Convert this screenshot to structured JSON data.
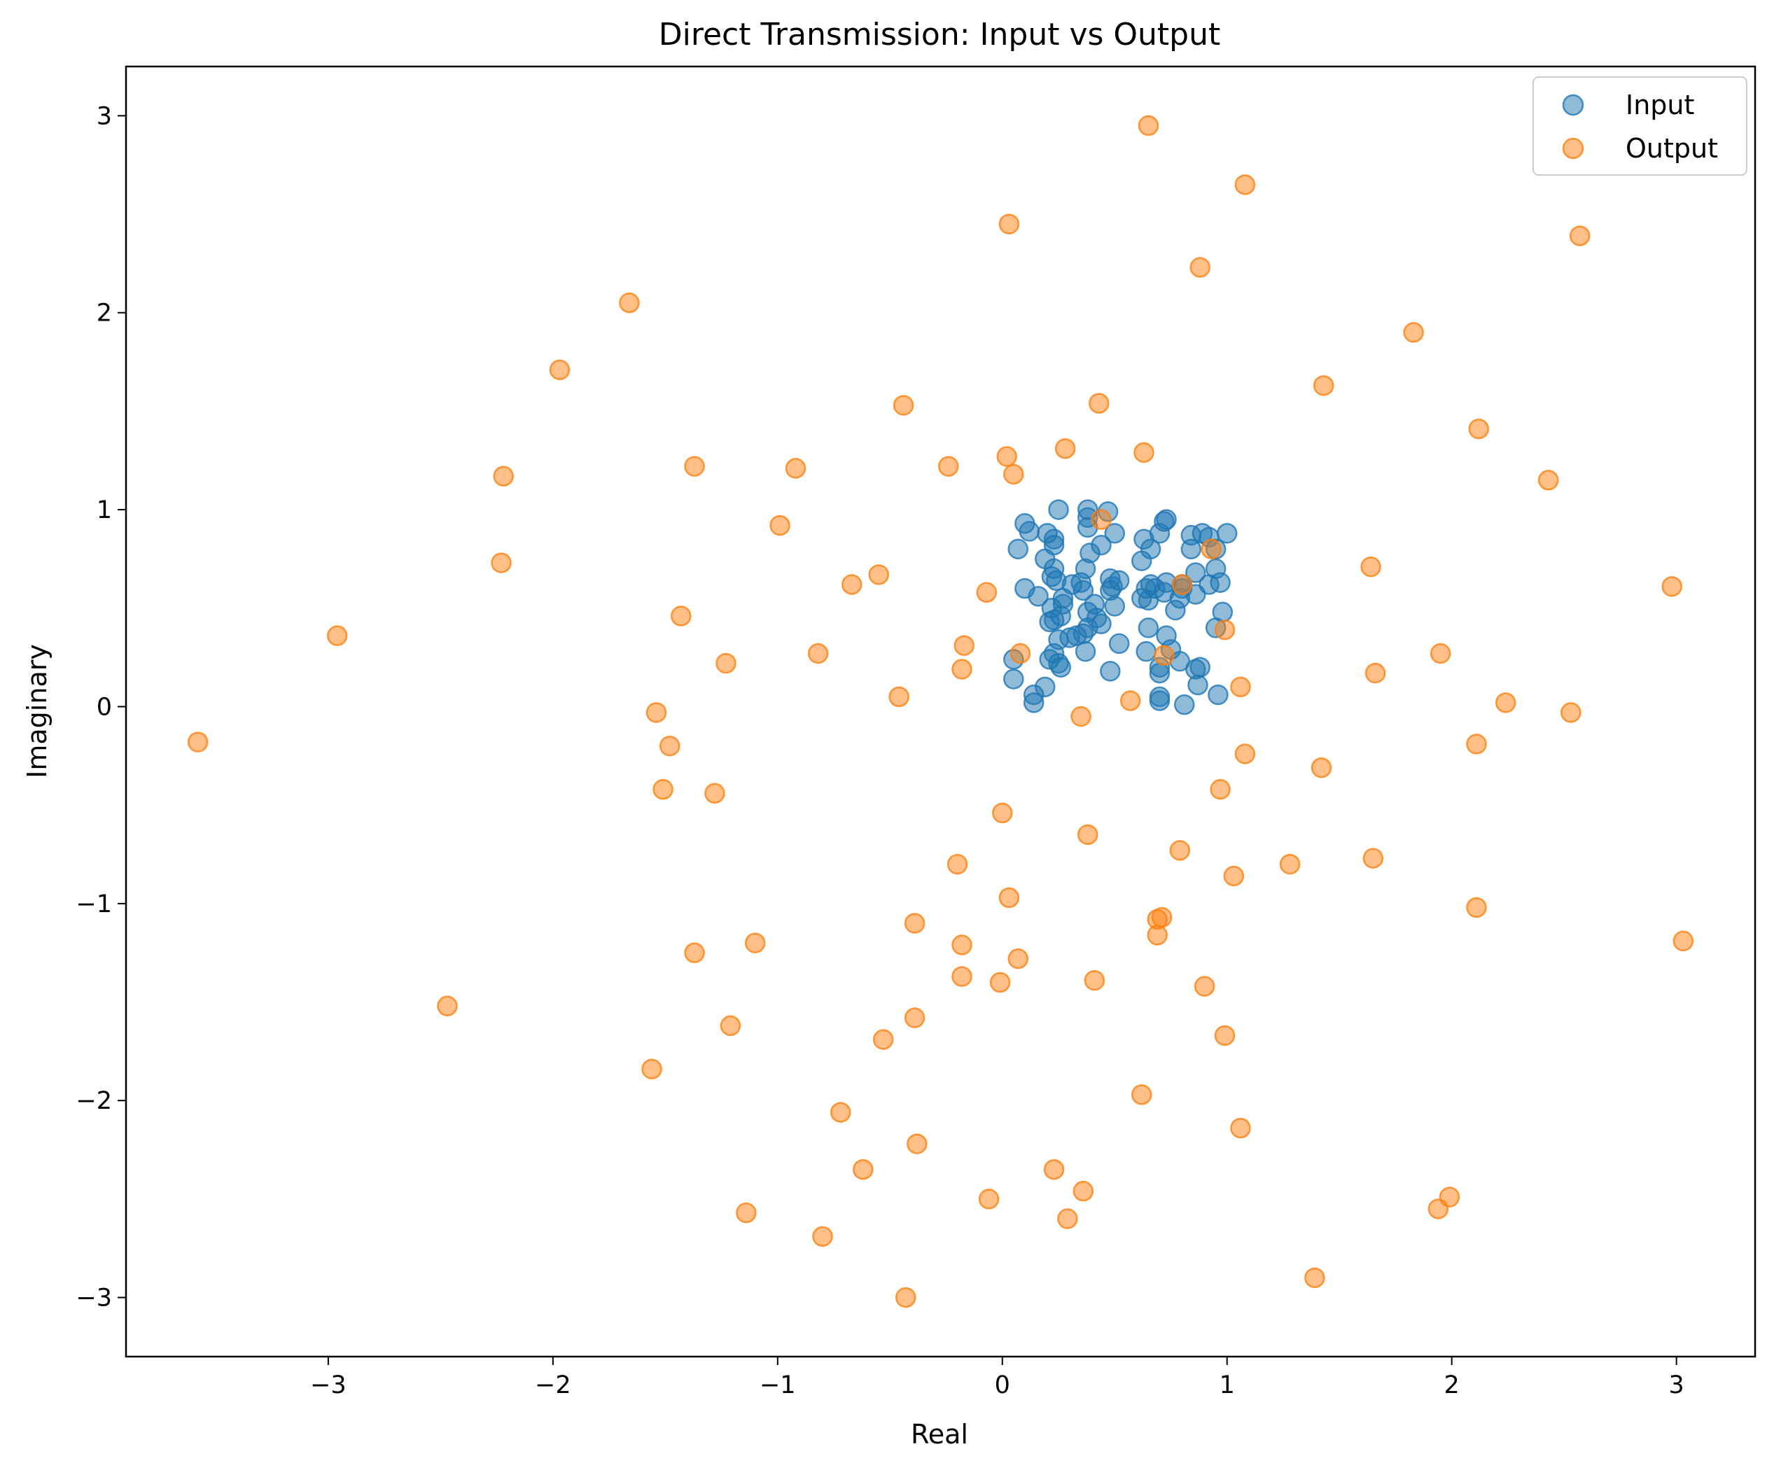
{
  "chart_data": {
    "type": "scatter",
    "title": "Direct Transmission: Input vs Output",
    "xlabel": "Real",
    "ylabel": "Imaginary",
    "xlim": [
      -3.9,
      3.35
    ],
    "ylim": [
      -3.3,
      3.25
    ],
    "x_ticks": [
      -3,
      -2,
      -1,
      0,
      1,
      2,
      3
    ],
    "y_ticks": [
      -3,
      -2,
      -1,
      0,
      1,
      2,
      3
    ],
    "x_tick_labels": [
      "−3",
      "−2",
      "−1",
      "0",
      "1",
      "2",
      "3"
    ],
    "y_tick_labels": [
      "−3",
      "−2",
      "−1",
      "0",
      "1",
      "2",
      "3"
    ],
    "grid": false,
    "legend_position": "top-right",
    "series": [
      {
        "name": "Input",
        "color": "#1f77b4",
        "points": [
          [
            0.1,
            0.93
          ],
          [
            0.12,
            0.89
          ],
          [
            0.25,
            1.0
          ],
          [
            0.38,
            1.0
          ],
          [
            0.47,
            0.99
          ],
          [
            0.38,
            0.96
          ],
          [
            0.38,
            0.91
          ],
          [
            0.2,
            0.88
          ],
          [
            0.23,
            0.85
          ],
          [
            0.23,
            0.82
          ],
          [
            0.07,
            0.8
          ],
          [
            0.44,
            0.82
          ],
          [
            0.39,
            0.78
          ],
          [
            0.5,
            0.88
          ],
          [
            0.19,
            0.75
          ],
          [
            0.23,
            0.7
          ],
          [
            0.37,
            0.7
          ],
          [
            0.22,
            0.66
          ],
          [
            0.31,
            0.62
          ],
          [
            0.1,
            0.6
          ],
          [
            0.16,
            0.56
          ],
          [
            0.24,
            0.64
          ],
          [
            0.35,
            0.63
          ],
          [
            0.36,
            0.59
          ],
          [
            0.27,
            0.55
          ],
          [
            0.27,
            0.52
          ],
          [
            0.22,
            0.5
          ],
          [
            0.26,
            0.46
          ],
          [
            0.23,
            0.44
          ],
          [
            0.21,
            0.43
          ],
          [
            0.38,
            0.48
          ],
          [
            0.41,
            0.52
          ],
          [
            0.42,
            0.45
          ],
          [
            0.44,
            0.42
          ],
          [
            0.38,
            0.4
          ],
          [
            0.36,
            0.37
          ],
          [
            0.33,
            0.36
          ],
          [
            0.3,
            0.35
          ],
          [
            0.25,
            0.34
          ],
          [
            0.37,
            0.28
          ],
          [
            0.23,
            0.27
          ],
          [
            0.21,
            0.24
          ],
          [
            0.25,
            0.22
          ],
          [
            0.26,
            0.2
          ],
          [
            0.05,
            0.24
          ],
          [
            0.05,
            0.14
          ],
          [
            0.19,
            0.1
          ],
          [
            0.14,
            0.06
          ],
          [
            0.14,
            0.02
          ],
          [
            0.48,
            0.65
          ],
          [
            0.49,
            0.61
          ],
          [
            0.52,
            0.64
          ],
          [
            0.48,
            0.59
          ],
          [
            0.5,
            0.51
          ],
          [
            0.52,
            0.32
          ],
          [
            0.48,
            0.18
          ],
          [
            0.63,
            0.85
          ],
          [
            0.62,
            0.74
          ],
          [
            0.66,
            0.8
          ],
          [
            0.7,
            0.88
          ],
          [
            0.72,
            0.94
          ],
          [
            0.73,
            0.95
          ],
          [
            0.66,
            0.62
          ],
          [
            0.68,
            0.6
          ],
          [
            0.62,
            0.55
          ],
          [
            0.65,
            0.54
          ],
          [
            0.64,
            0.6
          ],
          [
            0.72,
            0.58
          ],
          [
            0.73,
            0.63
          ],
          [
            0.8,
            0.6
          ],
          [
            0.84,
            0.87
          ],
          [
            0.89,
            0.88
          ],
          [
            0.92,
            0.86
          ],
          [
            0.84,
            0.8
          ],
          [
            0.95,
            0.8
          ],
          [
            0.95,
            0.7
          ],
          [
            0.86,
            0.68
          ],
          [
            0.92,
            0.62
          ],
          [
            0.97,
            0.63
          ],
          [
            0.86,
            0.57
          ],
          [
            0.79,
            0.55
          ],
          [
            0.77,
            0.49
          ],
          [
            0.98,
            0.48
          ],
          [
            0.95,
            0.4
          ],
          [
            0.65,
            0.4
          ],
          [
            0.73,
            0.36
          ],
          [
            0.75,
            0.29
          ],
          [
            0.64,
            0.28
          ],
          [
            0.79,
            0.23
          ],
          [
            0.7,
            0.2
          ],
          [
            0.86,
            0.19
          ],
          [
            0.88,
            0.2
          ],
          [
            0.7,
            0.17
          ],
          [
            0.87,
            0.11
          ],
          [
            0.96,
            0.06
          ],
          [
            0.7,
            0.05
          ],
          [
            0.7,
            0.03
          ],
          [
            0.81,
            0.01
          ],
          [
            1.0,
            0.88
          ],
          [
            0.8,
            0.62
          ]
        ]
      },
      {
        "name": "Output",
        "color": "#ff7f0e",
        "points": [
          [
            0.65,
            2.95
          ],
          [
            1.08,
            2.65
          ],
          [
            0.03,
            2.45
          ],
          [
            2.57,
            2.39
          ],
          [
            0.88,
            2.23
          ],
          [
            -1.66,
            2.05
          ],
          [
            1.83,
            1.9
          ],
          [
            -1.97,
            1.71
          ],
          [
            1.43,
            1.63
          ],
          [
            0.43,
            1.54
          ],
          [
            -0.44,
            1.53
          ],
          [
            2.12,
            1.41
          ],
          [
            0.28,
            1.31
          ],
          [
            0.63,
            1.29
          ],
          [
            0.02,
            1.27
          ],
          [
            -1.37,
            1.22
          ],
          [
            -0.92,
            1.21
          ],
          [
            -0.24,
            1.22
          ],
          [
            0.05,
            1.18
          ],
          [
            -2.22,
            1.17
          ],
          [
            2.43,
            1.15
          ],
          [
            0.44,
            0.95
          ],
          [
            -0.99,
            0.92
          ],
          [
            0.93,
            0.8
          ],
          [
            -2.23,
            0.73
          ],
          [
            1.64,
            0.71
          ],
          [
            -0.55,
            0.67
          ],
          [
            -0.67,
            0.62
          ],
          [
            0.8,
            0.62
          ],
          [
            2.98,
            0.61
          ],
          [
            -0.07,
            0.58
          ],
          [
            -1.43,
            0.46
          ],
          [
            0.99,
            0.39
          ],
          [
            -2.96,
            0.36
          ],
          [
            -0.17,
            0.31
          ],
          [
            0.08,
            0.27
          ],
          [
            -0.82,
            0.27
          ],
          [
            0.72,
            0.26
          ],
          [
            1.95,
            0.27
          ],
          [
            -1.23,
            0.22
          ],
          [
            -0.18,
            0.19
          ],
          [
            1.66,
            0.17
          ],
          [
            1.06,
            0.1
          ],
          [
            -0.46,
            0.05
          ],
          [
            0.57,
            0.03
          ],
          [
            2.24,
            0.02
          ],
          [
            -3.58,
            -0.18
          ],
          [
            -1.54,
            -0.03
          ],
          [
            2.53,
            -0.03
          ],
          [
            0.35,
            -0.05
          ],
          [
            -1.48,
            -0.2
          ],
          [
            2.11,
            -0.19
          ],
          [
            1.08,
            -0.24
          ],
          [
            1.42,
            -0.31
          ],
          [
            -1.51,
            -0.42
          ],
          [
            -1.28,
            -0.44
          ],
          [
            0.97,
            -0.42
          ],
          [
            0.0,
            -0.54
          ],
          [
            0.38,
            -0.65
          ],
          [
            0.79,
            -0.73
          ],
          [
            -0.2,
            -0.8
          ],
          [
            1.28,
            -0.8
          ],
          [
            1.65,
            -0.77
          ],
          [
            1.03,
            -0.86
          ],
          [
            0.03,
            -0.97
          ],
          [
            2.11,
            -1.02
          ],
          [
            0.71,
            -1.07
          ],
          [
            0.69,
            -1.08
          ],
          [
            -0.39,
            -1.1
          ],
          [
            0.69,
            -1.16
          ],
          [
            -1.1,
            -1.2
          ],
          [
            3.03,
            -1.19
          ],
          [
            -0.18,
            -1.21
          ],
          [
            -1.37,
            -1.25
          ],
          [
            0.07,
            -1.28
          ],
          [
            -0.18,
            -1.37
          ],
          [
            -0.01,
            -1.4
          ],
          [
            0.41,
            -1.39
          ],
          [
            0.9,
            -1.42
          ],
          [
            -2.47,
            -1.52
          ],
          [
            -0.39,
            -1.58
          ],
          [
            -1.21,
            -1.62
          ],
          [
            0.99,
            -1.67
          ],
          [
            -0.53,
            -1.69
          ],
          [
            -1.56,
            -1.84
          ],
          [
            0.62,
            -1.97
          ],
          [
            -0.72,
            -2.06
          ],
          [
            1.06,
            -2.14
          ],
          [
            -0.38,
            -2.22
          ],
          [
            0.23,
            -2.35
          ],
          [
            -0.62,
            -2.35
          ],
          [
            0.36,
            -2.46
          ],
          [
            -0.06,
            -2.5
          ],
          [
            1.99,
            -2.49
          ],
          [
            1.94,
            -2.55
          ],
          [
            -1.14,
            -2.57
          ],
          [
            0.29,
            -2.6
          ],
          [
            -0.8,
            -2.69
          ],
          [
            1.39,
            -2.9
          ],
          [
            -0.43,
            -3.0
          ]
        ]
      }
    ]
  }
}
